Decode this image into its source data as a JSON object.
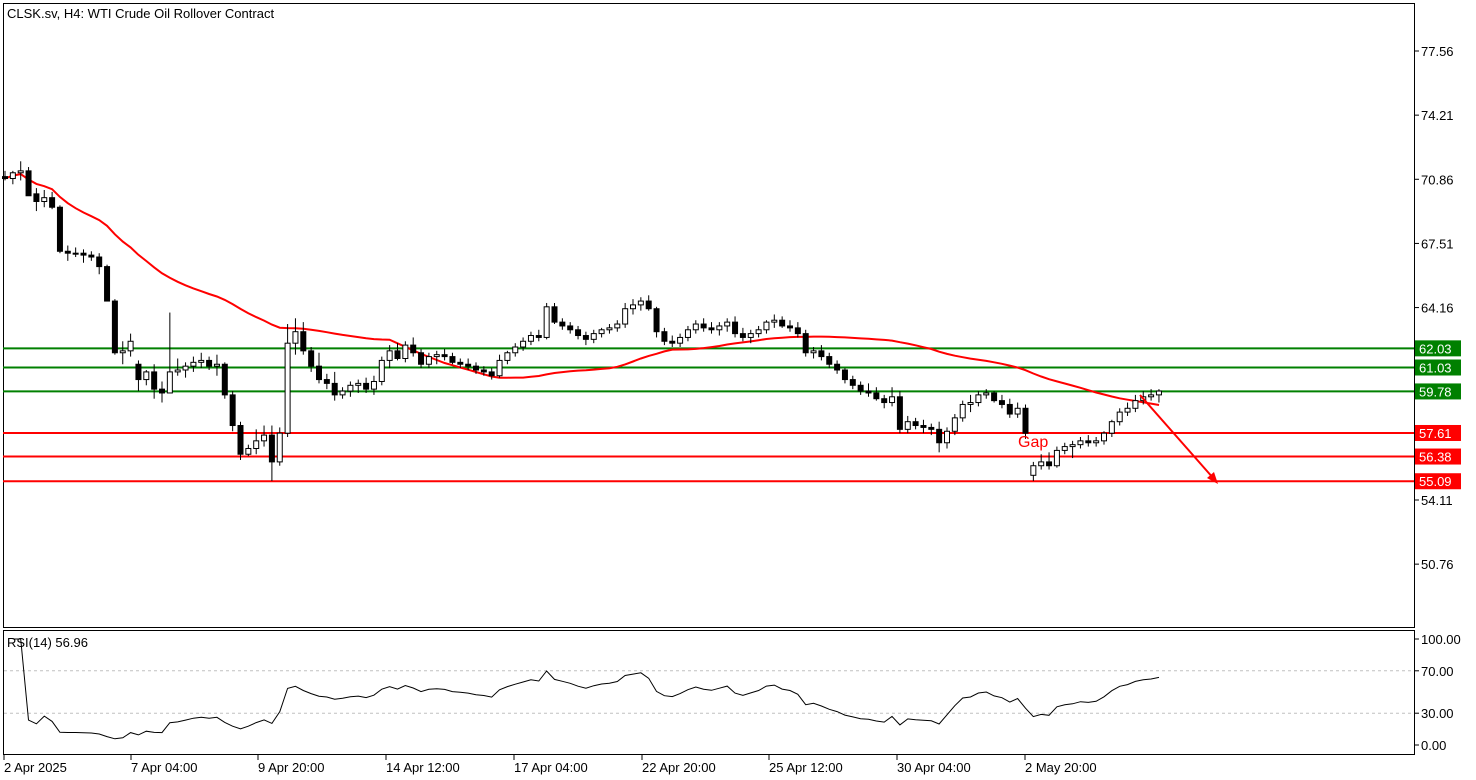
{
  "chart_data": {
    "type": "candlestick",
    "title": "CLSK.sv, H4:  WTI Crude Oil Rollover Contract",
    "price_axis": {
      "ticks": [
        77.56,
        74.21,
        70.86,
        67.51,
        64.16,
        54.11,
        50.76
      ]
    },
    "time_axis": {
      "labels": [
        "2 Apr 2025",
        "7 Apr 04:00",
        "9 Apr 20:00",
        "14 Apr 12:00",
        "17 Apr 04:00",
        "22 Apr 20:00",
        "25 Apr 12:00",
        "30 Apr 04:00",
        "2 May 20:00"
      ]
    },
    "resistance_levels": [
      {
        "value": 62.03,
        "label": "62.03",
        "color": "#008000"
      },
      {
        "value": 61.03,
        "label": "61.03",
        "color": "#008000"
      },
      {
        "value": 59.78,
        "label": "59.78",
        "color": "#008000"
      }
    ],
    "support_levels": [
      {
        "value": 57.61,
        "label": "57.61",
        "color": "#ff0000"
      },
      {
        "value": 56.38,
        "label": "56.38",
        "color": "#ff0000"
      },
      {
        "value": 55.09,
        "label": "55.09",
        "color": "#ff0000"
      }
    ],
    "annotation": {
      "text": "Gap",
      "color": "#ff0000"
    },
    "moving_average_color": "#ff0000",
    "candles": [
      [
        71.0,
        71.3,
        70.8,
        70.9
      ],
      [
        70.9,
        71.3,
        70.6,
        71.2
      ],
      [
        71.2,
        71.8,
        70.8,
        71.3
      ],
      [
        71.3,
        71.5,
        70.0,
        70.0
      ],
      [
        70.1,
        70.4,
        69.2,
        69.7
      ],
      [
        69.7,
        70.3,
        69.4,
        69.9
      ],
      [
        69.9,
        70.2,
        69.3,
        69.4
      ],
      [
        69.4,
        69.5,
        67.0,
        67.1
      ],
      [
        67.1,
        67.4,
        66.6,
        67.0
      ],
      [
        67.0,
        67.3,
        66.8,
        67.0
      ],
      [
        67.0,
        67.2,
        66.5,
        66.9
      ],
      [
        66.9,
        67.1,
        66.6,
        66.8
      ],
      [
        66.8,
        67.0,
        65.9,
        66.3
      ],
      [
        66.3,
        66.4,
        64.5,
        64.5
      ],
      [
        64.5,
        64.6,
        61.7,
        61.8
      ],
      [
        61.8,
        62.4,
        61.2,
        61.9
      ],
      [
        61.9,
        62.8,
        61.6,
        62.4
      ],
      [
        61.2,
        61.4,
        59.8,
        60.4
      ],
      [
        60.4,
        60.9,
        60.1,
        60.8
      ],
      [
        60.8,
        61.2,
        59.4,
        59.9
      ],
      [
        59.9,
        60.3,
        59.2,
        59.7
      ],
      [
        59.7,
        63.9,
        59.8,
        60.8
      ],
      [
        60.8,
        61.5,
        60.6,
        60.9
      ],
      [
        60.9,
        61.3,
        60.5,
        61.1
      ],
      [
        61.1,
        61.6,
        60.8,
        61.3
      ],
      [
        61.3,
        61.8,
        61.0,
        61.4
      ],
      [
        61.4,
        61.6,
        60.9,
        61.1
      ],
      [
        61.1,
        61.7,
        60.6,
        61.2
      ],
      [
        61.2,
        61.3,
        59.4,
        59.6
      ],
      [
        59.6,
        59.8,
        57.7,
        58.0
      ],
      [
        58.0,
        58.2,
        56.2,
        56.5
      ],
      [
        56.5,
        57.0,
        56.4,
        56.8
      ],
      [
        56.8,
        57.8,
        56.5,
        57.2
      ],
      [
        57.2,
        58.0,
        56.9,
        57.5
      ],
      [
        57.5,
        58.0,
        55.1,
        56.1
      ],
      [
        56.1,
        57.9,
        55.9,
        57.6
      ],
      [
        57.6,
        63.3,
        57.4,
        62.3
      ],
      [
        62.3,
        63.6,
        61.7,
        62.9
      ],
      [
        62.9,
        63.4,
        61.7,
        61.9
      ],
      [
        61.9,
        62.1,
        60.8,
        61.1
      ],
      [
        61.1,
        61.8,
        60.2,
        60.4
      ],
      [
        60.4,
        60.7,
        59.9,
        60.2
      ],
      [
        60.2,
        60.8,
        59.3,
        59.6
      ],
      [
        59.6,
        60.0,
        59.4,
        59.8
      ],
      [
        59.8,
        60.3,
        59.5,
        60.1
      ],
      [
        60.1,
        60.4,
        59.7,
        60.2
      ],
      [
        60.2,
        60.5,
        59.7,
        59.9
      ],
      [
        59.9,
        60.6,
        59.6,
        60.3
      ],
      [
        60.3,
        61.6,
        60.1,
        61.4
      ],
      [
        61.4,
        62.2,
        61.0,
        61.9
      ],
      [
        61.9,
        62.3,
        61.4,
        61.5
      ],
      [
        61.5,
        62.4,
        61.3,
        62.2
      ],
      [
        62.2,
        62.6,
        61.6,
        61.8
      ],
      [
        61.8,
        62.0,
        61.0,
        61.2
      ],
      [
        61.2,
        61.8,
        61.0,
        61.6
      ],
      [
        61.6,
        61.9,
        61.2,
        61.7
      ],
      [
        61.7,
        62.0,
        61.4,
        61.6
      ],
      [
        61.6,
        61.8,
        61.2,
        61.3
      ],
      [
        61.3,
        61.5,
        61.0,
        61.2
      ],
      [
        61.2,
        61.5,
        60.9,
        61.1
      ],
      [
        61.1,
        61.3,
        60.7,
        60.9
      ],
      [
        60.9,
        61.1,
        60.6,
        60.8
      ],
      [
        60.8,
        61.0,
        60.4,
        60.6
      ],
      [
        60.6,
        61.7,
        60.5,
        61.4
      ],
      [
        61.4,
        61.9,
        61.2,
        61.8
      ],
      [
        61.8,
        62.3,
        61.6,
        62.1
      ],
      [
        62.1,
        62.6,
        61.9,
        62.4
      ],
      [
        62.4,
        62.9,
        62.2,
        62.7
      ],
      [
        62.7,
        63.0,
        62.4,
        62.6
      ],
      [
        62.6,
        64.4,
        62.5,
        64.2
      ],
      [
        64.2,
        64.4,
        63.3,
        63.4
      ],
      [
        63.4,
        63.6,
        63.0,
        63.2
      ],
      [
        63.2,
        63.4,
        62.8,
        63.0
      ],
      [
        63.0,
        63.2,
        62.5,
        62.7
      ],
      [
        62.7,
        62.9,
        62.2,
        62.5
      ],
      [
        62.5,
        63.0,
        62.3,
        62.8
      ],
      [
        62.8,
        63.1,
        62.6,
        63.0
      ],
      [
        63.0,
        63.3,
        62.8,
        63.1
      ],
      [
        63.1,
        63.5,
        62.9,
        63.3
      ],
      [
        63.3,
        64.4,
        63.1,
        64.1
      ],
      [
        64.1,
        64.6,
        63.8,
        64.3
      ],
      [
        64.3,
        64.7,
        64.0,
        64.5
      ],
      [
        64.5,
        64.8,
        64.0,
        64.1
      ],
      [
        64.1,
        64.2,
        62.6,
        62.9
      ],
      [
        62.9,
        63.1,
        62.2,
        62.4
      ],
      [
        62.4,
        62.7,
        62.1,
        62.3
      ],
      [
        62.3,
        62.8,
        62.1,
        62.6
      ],
      [
        62.6,
        63.2,
        62.4,
        63.0
      ],
      [
        63.0,
        63.5,
        62.8,
        63.3
      ],
      [
        63.3,
        63.6,
        62.9,
        63.1
      ],
      [
        63.1,
        63.4,
        62.8,
        63.0
      ],
      [
        63.0,
        63.4,
        62.7,
        63.2
      ],
      [
        63.2,
        63.6,
        62.9,
        63.4
      ],
      [
        63.4,
        63.7,
        62.6,
        62.8
      ],
      [
        62.8,
        63.1,
        62.4,
        62.6
      ],
      [
        62.6,
        63.0,
        62.3,
        62.8
      ],
      [
        62.8,
        63.2,
        62.6,
        63.0
      ],
      [
        63.0,
        63.5,
        62.8,
        63.4
      ],
      [
        63.4,
        63.8,
        63.1,
        63.5
      ],
      [
        63.5,
        63.7,
        63.1,
        63.2
      ],
      [
        63.2,
        63.5,
        62.9,
        63.1
      ],
      [
        63.1,
        63.4,
        62.6,
        62.8
      ],
      [
        62.8,
        63.0,
        61.6,
        61.8
      ],
      [
        61.8,
        62.1,
        61.5,
        61.9
      ],
      [
        61.9,
        62.2,
        61.4,
        61.6
      ],
      [
        61.6,
        61.8,
        61.0,
        61.2
      ],
      [
        61.2,
        61.4,
        60.7,
        60.9
      ],
      [
        60.9,
        61.0,
        60.2,
        60.4
      ],
      [
        60.4,
        60.6,
        59.9,
        60.1
      ],
      [
        60.1,
        60.3,
        59.6,
        59.8
      ],
      [
        59.8,
        60.2,
        59.5,
        59.7
      ],
      [
        59.7,
        60.0,
        59.3,
        59.4
      ],
      [
        59.4,
        59.6,
        58.9,
        59.2
      ],
      [
        59.2,
        60.0,
        59.0,
        59.5
      ],
      [
        59.5,
        59.8,
        57.6,
        57.8
      ],
      [
        57.8,
        58.5,
        57.6,
        58.2
      ],
      [
        58.2,
        58.4,
        57.8,
        58.0
      ],
      [
        58.0,
        58.3,
        57.6,
        57.9
      ],
      [
        57.9,
        58.1,
        57.5,
        57.8
      ],
      [
        57.8,
        58.2,
        56.6,
        57.1
      ],
      [
        57.1,
        57.9,
        56.8,
        57.7
      ],
      [
        57.7,
        58.6,
        57.5,
        58.4
      ],
      [
        58.4,
        59.3,
        58.2,
        59.1
      ],
      [
        59.1,
        59.6,
        58.7,
        59.2
      ],
      [
        59.2,
        59.8,
        59.0,
        59.6
      ],
      [
        59.6,
        59.9,
        59.4,
        59.7
      ],
      [
        59.7,
        59.8,
        59.2,
        59.3
      ],
      [
        59.3,
        59.6,
        58.9,
        59.1
      ],
      [
        59.1,
        59.4,
        58.4,
        58.6
      ],
      [
        58.6,
        59.2,
        58.4,
        58.9
      ],
      [
        58.9,
        59.1,
        57.3,
        57.6
      ],
      [
        55.4,
        56.1,
        55.1,
        55.9
      ],
      [
        55.9,
        56.5,
        55.7,
        56.1
      ],
      [
        56.1,
        56.6,
        55.7,
        55.9
      ],
      [
        55.9,
        56.9,
        55.8,
        56.7
      ],
      [
        56.7,
        57.1,
        56.5,
        56.9
      ],
      [
        56.9,
        57.2,
        56.3,
        57.0
      ],
      [
        57.0,
        57.4,
        56.8,
        57.2
      ],
      [
        57.2,
        57.5,
        56.9,
        57.1
      ],
      [
        57.1,
        57.4,
        56.9,
        57.2
      ],
      [
        57.2,
        57.7,
        57.0,
        57.6
      ],
      [
        57.6,
        58.3,
        57.4,
        58.2
      ],
      [
        58.2,
        58.9,
        58.0,
        58.7
      ],
      [
        58.7,
        59.2,
        58.5,
        58.9
      ],
      [
        58.9,
        59.6,
        58.7,
        59.3
      ],
      [
        59.3,
        59.8,
        59.1,
        59.5
      ],
      [
        59.5,
        59.9,
        59.3,
        59.6
      ],
      [
        59.6,
        59.9,
        59.2,
        59.8
      ]
    ],
    "ma_period": 50,
    "rsi": {
      "label": "RSI(14) 56.96",
      "period": 14,
      "ticks": [
        100.0,
        70.0,
        30.0,
        0.0
      ],
      "tick_labels": [
        "100.00",
        "70.00",
        "30.00",
        "0.00"
      ],
      "levels": [
        70,
        30
      ]
    }
  }
}
